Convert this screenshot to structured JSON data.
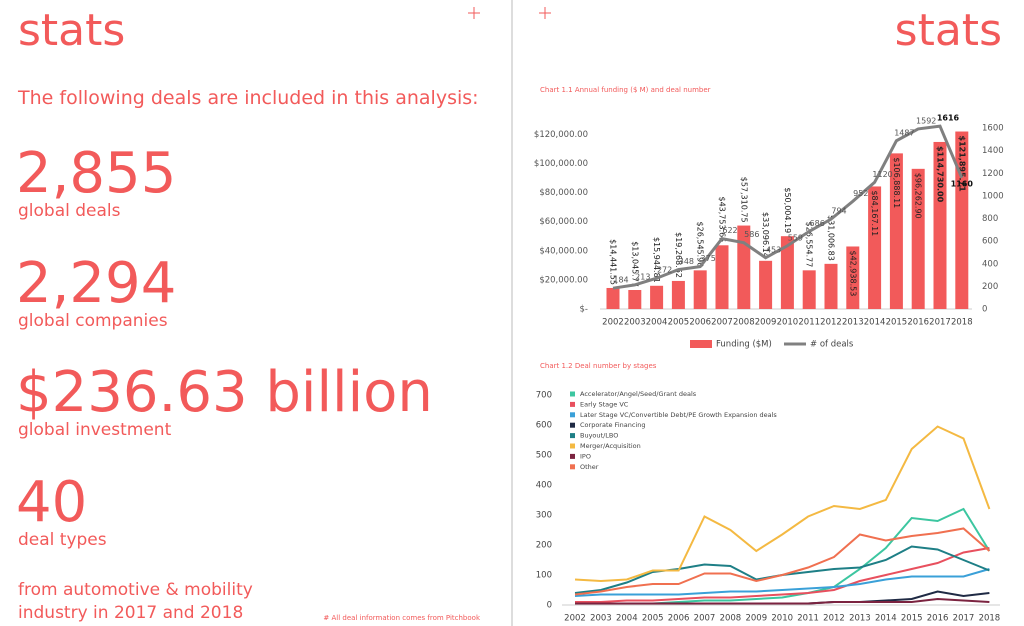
{
  "left": {
    "title": "stats",
    "intro": "The following deals are included in this analysis:",
    "stats": [
      {
        "value": "2,855",
        "label": "global deals"
      },
      {
        "value": "2,294",
        "label": "global companies"
      },
      {
        "value": "$236.63 billion",
        "label": "global investment"
      },
      {
        "value": "40",
        "label": "deal types"
      }
    ],
    "closing": [
      "from automotive & mobility",
      "industry in 2017 and 2018"
    ],
    "footnote": "# All deal information comes from Pitchbook"
  },
  "right": {
    "title": "stats"
  },
  "chart_data": [
    {
      "type": "bar-line",
      "title": "Chart 1.1 Annual funding ($ M) and deal number",
      "categories": [
        "2002",
        "2003",
        "2004",
        "2005",
        "2006",
        "2007",
        "2008",
        "2009",
        "2010",
        "2011",
        "2012",
        "2013",
        "2014",
        "2015",
        "2016",
        "2017",
        "2018"
      ],
      "series": [
        {
          "name": "Funding ($M)",
          "type": "bar",
          "color": "#f25a5a",
          "values": [
            14441.55,
            13045.77,
            15944.81,
            19268.62,
            26545.9,
            43753.65,
            57310.75,
            33096.14,
            50004.19,
            26554.77,
            31006.83,
            42938.53,
            84167.11,
            106888.11,
            96262.9,
            114730.0,
            121895.71
          ],
          "value_labels": [
            "$14,441.55",
            "$13,045.77",
            "$15,944.81",
            "$19,268.62",
            "$26,545.90",
            "$43,753.65",
            "$57,310.75",
            "$33,096.14",
            "$50,004.19",
            "$26,554.77",
            "$31,006.83",
            "$42,938.53",
            "$84,167.11",
            "$106,888.11",
            "$96,262.90",
            "$114,730.00",
            "$121,895.71"
          ]
        },
        {
          "name": "# of deals",
          "type": "line",
          "axis": "y2",
          "color": "#808080",
          "values": [
            184,
            213,
            272,
            348,
            375,
            622,
            586,
            453,
            559,
            686,
            794,
            952,
            1120,
            1487,
            1592,
            1616,
            1160
          ]
        }
      ],
      "ylim": [
        0,
        125000
      ],
      "yticks": [
        {
          "value": 0,
          "label": "$-"
        },
        {
          "value": 20000,
          "label": "$20,000.00"
        },
        {
          "value": 40000,
          "label": "$40,000.00"
        },
        {
          "value": 60000,
          "label": "$60,000.00"
        },
        {
          "value": 80000,
          "label": "$80,000.00"
        },
        {
          "value": 100000,
          "label": "$100,000.00"
        },
        {
          "value": 120000,
          "label": "$120,000.00"
        }
      ],
      "y2lim": [
        0,
        1600
      ],
      "y2ticks": [
        0,
        200,
        400,
        600,
        800,
        1000,
        1200,
        1400,
        1600
      ],
      "grid": false,
      "legend": "bottom"
    },
    {
      "type": "line",
      "title": "Chart 1.2 Deal number by stages",
      "categories": [
        "2002",
        "2003",
        "2004",
        "2005",
        "2006",
        "2007",
        "2008",
        "2009",
        "2010",
        "2011",
        "2012",
        "2013",
        "2014",
        "2015",
        "2016",
        "2017",
        "2018"
      ],
      "series": [
        {
          "name": "Accelerator/Angel/Seed/Grant deals",
          "color": "#3cc6a0",
          "values": [
            5,
            5,
            5,
            5,
            10,
            15,
            15,
            20,
            25,
            40,
            60,
            120,
            190,
            290,
            280,
            320,
            180
          ]
        },
        {
          "name": "Early Stage VC",
          "color": "#e8505e",
          "values": [
            10,
            10,
            15,
            15,
            20,
            25,
            25,
            30,
            35,
            40,
            50,
            80,
            100,
            120,
            140,
            175,
            190
          ]
        },
        {
          "name": "Later Stage VC/Convertible Debt/PE Growth Expansion deals",
          "color": "#3aa0d8",
          "values": [
            30,
            35,
            35,
            35,
            35,
            40,
            45,
            45,
            50,
            55,
            60,
            70,
            85,
            95,
            95,
            95,
            120
          ]
        },
        {
          "name": "Corporate Financing",
          "color": "#1f2a44",
          "values": [
            5,
            5,
            5,
            5,
            5,
            5,
            5,
            5,
            5,
            5,
            10,
            10,
            15,
            20,
            45,
            30,
            40
          ]
        },
        {
          "name": "Buyout/LBO",
          "color": "#1e7f86",
          "values": [
            40,
            50,
            75,
            110,
            120,
            135,
            130,
            85,
            100,
            110,
            120,
            125,
            150,
            195,
            185,
            150,
            115
          ]
        },
        {
          "name": "Merger/Acquisition",
          "color": "#f4b942",
          "values": [
            85,
            80,
            85,
            115,
            115,
            295,
            250,
            180,
            235,
            295,
            330,
            320,
            350,
            520,
            595,
            555,
            320
          ]
        },
        {
          "name": "IPO",
          "color": "#7b2340",
          "values": [
            5,
            5,
            5,
            5,
            5,
            5,
            5,
            5,
            5,
            5,
            10,
            10,
            10,
            10,
            20,
            15,
            10
          ]
        },
        {
          "name": "Other",
          "color": "#f07050",
          "values": [
            35,
            45,
            60,
            70,
            70,
            105,
            105,
            80,
            100,
            125,
            160,
            235,
            215,
            230,
            240,
            255,
            180
          ]
        }
      ],
      "ylim": [
        0,
        700
      ],
      "yticks": [
        0,
        100,
        200,
        300,
        400,
        500,
        600,
        700
      ],
      "grid": false,
      "legend": "top-left"
    }
  ]
}
